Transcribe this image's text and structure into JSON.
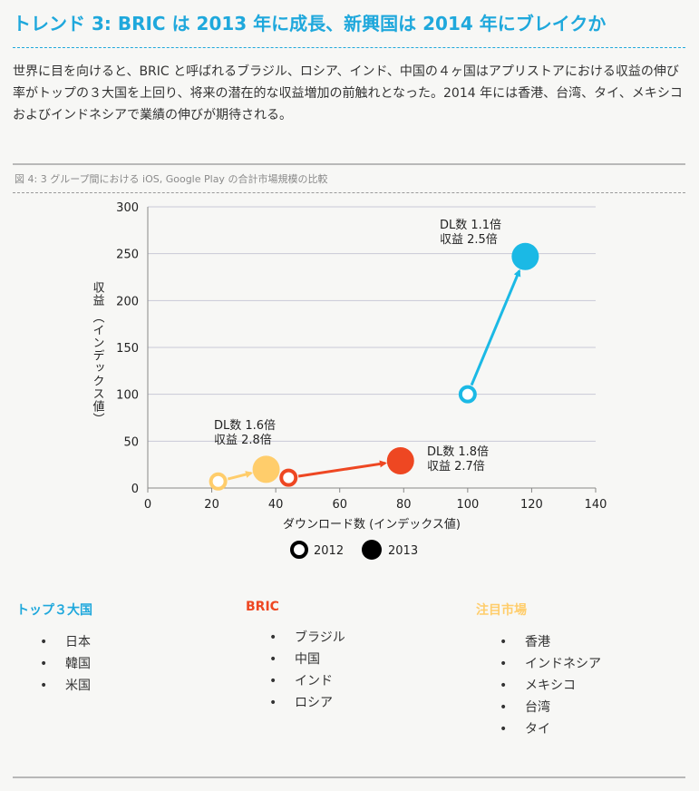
{
  "header": {
    "title": "トレンド 3: BRIC は 2013 年に成長、新興国は 2014 年にブレイクか",
    "body": "世界に目を向けると、BRIC と呼ばれるブラジル、ロシア、インド、中国の４ヶ国はアプリストアにおける収益の伸び率がトップの３大国を上回り、将来の潜在的な収益増加の前触れとなった。2014 年には香港、台湾、タイ、メキシコおよびインドネシアで業績の伸びが期待される。"
  },
  "figure": {
    "caption": "図 4: 3 グループ間における iOS, Google Play の合計市場規模の比較"
  },
  "chart_data": {
    "type": "scatter",
    "xlabel": "ダウンロード数 (インデックス値)",
    "ylabel": "収益 （インデックス値）",
    "xlim": [
      0,
      140
    ],
    "ylim": [
      0,
      300
    ],
    "xticks": [
      0,
      20,
      40,
      60,
      80,
      100,
      120,
      140
    ],
    "yticks": [
      0,
      50,
      100,
      150,
      200,
      250,
      300
    ],
    "grid": "horizontal",
    "legend": {
      "placement": "bottom",
      "entries": [
        {
          "label": "2012",
          "style": "hollow"
        },
        {
          "label": "2013",
          "style": "filled"
        }
      ]
    },
    "series": [
      {
        "color": "#ffcd6b",
        "points": [
          {
            "year": "2012",
            "x": 22,
            "y": 7
          },
          {
            "year": "2013",
            "x": 37,
            "y": 20
          }
        ],
        "annotation": [
          "DL数 1.6倍",
          "収益 2.8倍"
        ]
      },
      {
        "color": "#ee4722",
        "points": [
          {
            "year": "2012",
            "x": 44,
            "y": 11
          },
          {
            "year": "2013",
            "x": 79,
            "y": 29
          }
        ],
        "annotation": [
          "DL数 1.8倍",
          "収益 2.7倍"
        ]
      },
      {
        "color": "#1bb9e5",
        "points": [
          {
            "year": "2012",
            "x": 100,
            "y": 100
          },
          {
            "year": "2013",
            "x": 118,
            "y": 247
          }
        ],
        "annotation": [
          "DL数 1.1倍",
          "収益 2.5倍"
        ]
      }
    ]
  },
  "groups": [
    {
      "title": "トップ３大国",
      "color": "#1fa8dc",
      "items": [
        "日本",
        "韓国",
        "米国"
      ]
    },
    {
      "title": "BRIC",
      "color": "#ee4722",
      "items": [
        "ブラジル",
        "中国",
        "インド",
        "ロシア"
      ]
    },
    {
      "title": "注目市場",
      "color": "#ffcd6b",
      "items": [
        "香港",
        "インドネシア",
        "メキシコ",
        "台湾",
        "タイ"
      ]
    }
  ]
}
